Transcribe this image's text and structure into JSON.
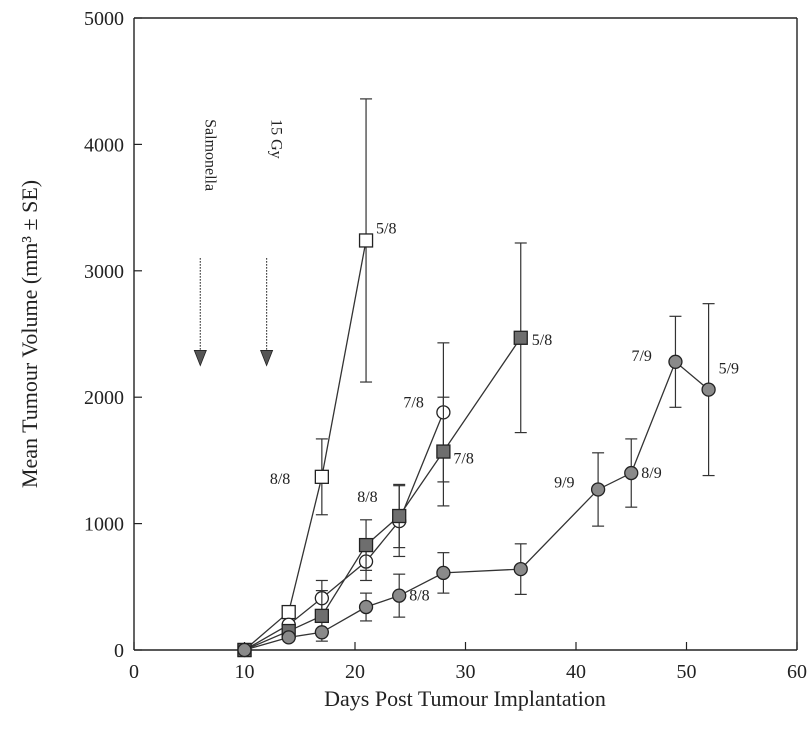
{
  "chart_data": {
    "type": "line",
    "title": "",
    "xlabel": "Days Post Tumour Implantation",
    "ylabel": "Mean Tumour Volume (mm³ ± SE)",
    "xlim": [
      0,
      60
    ],
    "ylim": [
      0,
      5000
    ],
    "x_ticks": [
      0,
      10,
      20,
      30,
      40,
      50,
      60
    ],
    "y_ticks": [
      0,
      1000,
      2000,
      3000,
      4000,
      5000
    ],
    "grid": false,
    "legend": "none",
    "treatment_markers": [
      {
        "label": "Salmonella",
        "day": 6
      },
      {
        "label": "15 Gy",
        "day": 12
      }
    ],
    "series": [
      {
        "marker": "open-square",
        "points": [
          {
            "x": 10,
            "y": 0,
            "err": 0
          },
          {
            "x": 14,
            "y": 300,
            "err": 0
          },
          {
            "x": 17,
            "y": 1370,
            "err": 300
          },
          {
            "x": 21,
            "y": 3240,
            "err": 1120
          }
        ],
        "labels": [
          {
            "point": 2,
            "text": "8/8"
          },
          {
            "point": 3,
            "text": "5/8"
          }
        ]
      },
      {
        "marker": "open-circle",
        "points": [
          {
            "x": 10,
            "y": 0,
            "err": 0
          },
          {
            "x": 14,
            "y": 200,
            "err": 0
          },
          {
            "x": 17,
            "y": 410,
            "err": 140
          },
          {
            "x": 21,
            "y": 700,
            "err": 150
          },
          {
            "x": 24,
            "y": 1020,
            "err": 280
          },
          {
            "x": 28,
            "y": 1880,
            "err": 550
          }
        ],
        "labels": [
          {
            "point": 5,
            "text": "7/8"
          }
        ]
      },
      {
        "marker": "filled-square",
        "points": [
          {
            "x": 10,
            "y": 0,
            "err": 0
          },
          {
            "x": 14,
            "y": 150,
            "err": 0
          },
          {
            "x": 17,
            "y": 270,
            "err": 200
          },
          {
            "x": 21,
            "y": 830,
            "err": 200
          },
          {
            "x": 24,
            "y": 1060,
            "err": 250
          },
          {
            "x": 28,
            "y": 1570,
            "err": 430
          },
          {
            "x": 35,
            "y": 2470,
            "err": 750
          }
        ],
        "labels": [
          {
            "point": 4,
            "text": "8/8"
          },
          {
            "point": 5,
            "text": "7/8"
          },
          {
            "point": 6,
            "text": "5/8"
          }
        ]
      },
      {
        "marker": "filled-circle",
        "points": [
          {
            "x": 10,
            "y": 0,
            "err": 0
          },
          {
            "x": 14,
            "y": 100,
            "err": 0
          },
          {
            "x": 17,
            "y": 140,
            "err": 0
          },
          {
            "x": 21,
            "y": 340,
            "err": 110
          },
          {
            "x": 24,
            "y": 430,
            "err": 170
          },
          {
            "x": 28,
            "y": 610,
            "err": 160
          },
          {
            "x": 35,
            "y": 640,
            "err": 200
          },
          {
            "x": 42,
            "y": 1270,
            "err": 290
          },
          {
            "x": 45,
            "y": 1400,
            "err": 270
          },
          {
            "x": 49,
            "y": 2280,
            "err": 360
          },
          {
            "x": 52,
            "y": 2060,
            "err": 680
          }
        ],
        "labels": [
          {
            "point": 4,
            "text": "8/8"
          },
          {
            "point": 7,
            "text": "9/9"
          },
          {
            "point": 8,
            "text": "8/9"
          },
          {
            "point": 9,
            "text": "7/9"
          },
          {
            "point": 10,
            "text": "5/9"
          }
        ]
      }
    ]
  }
}
